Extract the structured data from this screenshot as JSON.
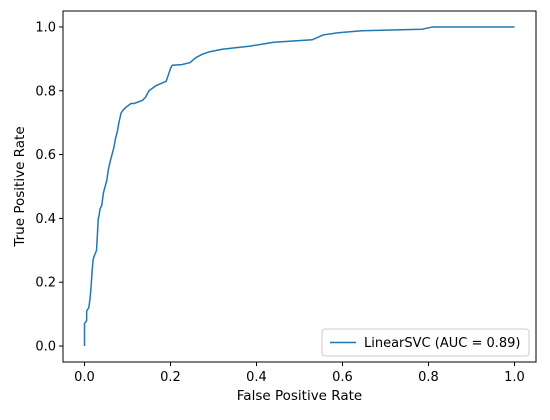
{
  "chart_data": {
    "type": "line",
    "title": "",
    "xlabel": "False Positive Rate",
    "ylabel": "True Positive Rate",
    "xlim": [
      -0.05,
      1.05
    ],
    "ylim": [
      -0.05,
      1.05
    ],
    "xticks": [
      0.0,
      0.2,
      0.4,
      0.6,
      0.8,
      1.0
    ],
    "yticks": [
      0.0,
      0.2,
      0.4,
      0.6,
      0.8,
      1.0
    ],
    "xtick_labels": [
      "0.0",
      "0.2",
      "0.4",
      "0.6",
      "0.8",
      "1.0"
    ],
    "ytick_labels": [
      "0.0",
      "0.2",
      "0.4",
      "0.6",
      "0.8",
      "1.0"
    ],
    "grid": false,
    "legend_position": "lower-right",
    "series": [
      {
        "name": "LinearSVC (AUC = 0.89)",
        "color": "#1f77b4",
        "x": [
          0.0,
          0.0,
          0.005,
          0.005,
          0.01,
          0.012,
          0.014,
          0.016,
          0.018,
          0.02,
          0.022,
          0.025,
          0.028,
          0.032,
          0.034,
          0.036,
          0.04,
          0.044,
          0.048,
          0.052,
          0.055,
          0.06,
          0.064,
          0.068,
          0.072,
          0.076,
          0.08,
          0.085,
          0.09,
          0.094,
          0.098,
          0.103,
          0.108,
          0.115,
          0.125,
          0.135,
          0.142,
          0.15,
          0.165,
          0.19,
          0.195,
          0.2,
          0.204,
          0.226,
          0.245,
          0.26,
          0.275,
          0.29,
          0.32,
          0.385,
          0.44,
          0.53,
          0.54,
          0.555,
          0.59,
          0.645,
          0.785,
          0.81,
          1.0
        ],
        "y": [
          0.0,
          0.07,
          0.08,
          0.11,
          0.12,
          0.14,
          0.165,
          0.2,
          0.24,
          0.27,
          0.28,
          0.29,
          0.3,
          0.4,
          0.41,
          0.43,
          0.44,
          0.48,
          0.5,
          0.52,
          0.55,
          0.58,
          0.6,
          0.62,
          0.65,
          0.67,
          0.7,
          0.73,
          0.74,
          0.745,
          0.75,
          0.755,
          0.76,
          0.76,
          0.765,
          0.77,
          0.78,
          0.8,
          0.815,
          0.83,
          0.85,
          0.87,
          0.88,
          0.882,
          0.888,
          0.905,
          0.915,
          0.922,
          0.93,
          0.94,
          0.952,
          0.96,
          0.966,
          0.975,
          0.982,
          0.988,
          0.993,
          1.0,
          1.0
        ]
      }
    ]
  }
}
